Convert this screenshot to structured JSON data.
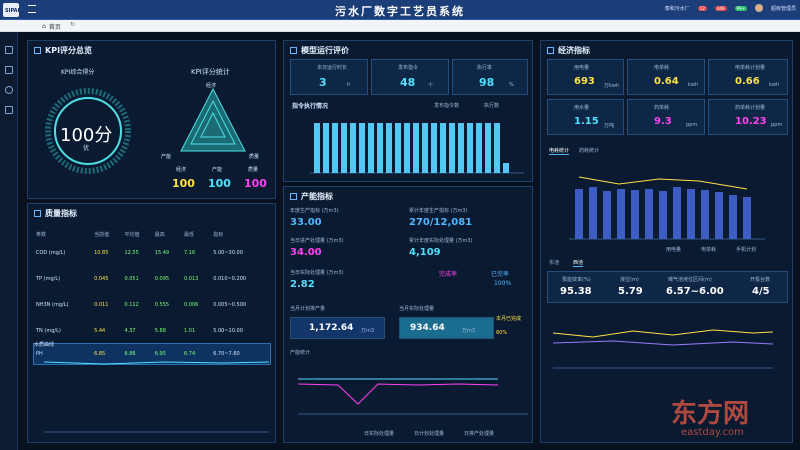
{
  "header": {
    "logo_text": "SIPAI",
    "title": "污水厂数字工艺员系统",
    "plant": "泰和污水厂",
    "badge1": "12",
    "badge2": "449",
    "badge3": "99+",
    "user": "超级管理员"
  },
  "tabs": {
    "home": "首页"
  },
  "kpi": {
    "title": "KPI评分总览",
    "score_label": "KPI综合得分",
    "score": "100分",
    "grade": "优",
    "radar_title": "KPI评分统计",
    "axes": [
      "经济",
      "产能",
      "质量"
    ],
    "values": [
      "100",
      "100",
      "100"
    ]
  },
  "model": {
    "title": "模型运行评价",
    "stats": [
      {
        "label": "本日运行时长",
        "value": "3",
        "unit": "h"
      },
      {
        "label": "发布指令",
        "value": "48",
        "unit": "个"
      },
      {
        "label": "执行率",
        "value": "98",
        "unit": "%"
      }
    ],
    "chart_title": "指令执行情况",
    "legend": [
      "发布指令数",
      "执行数"
    ]
  },
  "econ": {
    "title": "经济指标",
    "items": [
      {
        "label": "用电量",
        "value": "693",
        "unit": "万kwh",
        "color": "#ffe14a"
      },
      {
        "label": "电单耗",
        "value": "0.64",
        "unit": "kwh",
        "color": "#ffe14a"
      },
      {
        "label": "电单耗计划量",
        "value": "0.66",
        "unit": "kwh",
        "color": "#ffe14a"
      },
      {
        "label": "用水量",
        "value": "1.15",
        "unit": "万吨",
        "color": "#52e0ff"
      },
      {
        "label": "药单耗",
        "value": "9.3",
        "unit": "ppm",
        "color": "#ff42f0"
      },
      {
        "label": "药单耗计划量",
        "value": "10.23",
        "unit": "ppm",
        "color": "#ff42f0"
      }
    ],
    "tabs": [
      "电耗统计",
      "药耗统计"
    ],
    "legend": [
      "用电量",
      "电单耗",
      "手机计划"
    ]
  },
  "quality": {
    "title": "质量指标",
    "headers": [
      "参数",
      "当前值",
      "平均值",
      "最高",
      "最低",
      "指标"
    ],
    "rows": [
      [
        "COD (mg/L)",
        "10.85",
        "12.55",
        "15.49",
        "7.16",
        "5.00~30.00"
      ],
      [
        "TP (mg/L)",
        "0.045",
        "0.051",
        "0.095",
        "0.013",
        "0.010~0.200"
      ],
      [
        "NH3N (mg/L)",
        "0.011",
        "0.112",
        "0.555",
        "0.006",
        "0.005~0.500"
      ],
      [
        "TN (mg/L)",
        "5.44",
        "4.37",
        "5.88",
        "1.01",
        "5.00~10.00"
      ],
      [
        "PH",
        "6.85",
        "6.86",
        "6.95",
        "6.74",
        "6.70~7.60"
      ]
    ],
    "curve_title": "水质曲线"
  },
  "capacity": {
    "title": "产能指标",
    "left": [
      {
        "label": "年度生产指标 (万m3)",
        "value": "33.00"
      },
      {
        "label": "当日进产处理量 (万m3)",
        "value": "34.00"
      },
      {
        "label": "当日实际处理量 (万m3)",
        "value": "2.82"
      }
    ],
    "right": [
      {
        "label": "累计年度生产指标 (万m3)",
        "value": "270/12,081"
      },
      {
        "label": "累计年度实际处理量 (万m3)",
        "value": "4,109"
      }
    ],
    "rate_a": "完成率",
    "rate_b": "已完率",
    "rate_a_val": "",
    "rate_b_val": "100%",
    "plan_label": "当月计划排产量",
    "plan_value": "1,172.64",
    "plan_unit": "万m3",
    "actual_label": "当月实际处理量",
    "actual_value": "934.64",
    "actual_unit": "万m3",
    "month_label": "本月已完成",
    "month_value": "80%",
    "stats_title": "产能统计",
    "legend": [
      "日实际处理量",
      "日计划处理量",
      "日排产处理量"
    ]
  },
  "right_bottom": {
    "tabs": [
      "东池",
      "西池"
    ],
    "items": [
      {
        "label": "泵能效率(%)",
        "value": "95.38"
      },
      {
        "label": "液位(m)",
        "value": "5.79"
      },
      {
        "label": "曝气池液位区间(m)",
        "value": "6.57~6.00"
      },
      {
        "label": "开泵台数",
        "value": "4/5"
      }
    ]
  },
  "watermark": {
    "cn": "东方网",
    "en": "eastday.com"
  }
}
